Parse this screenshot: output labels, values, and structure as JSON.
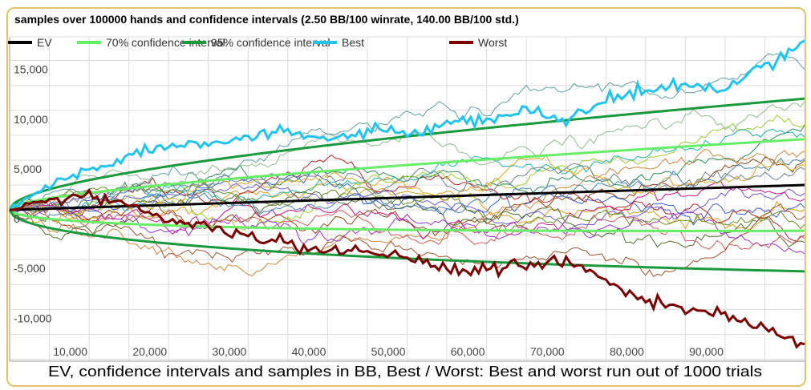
{
  "chart_data": {
    "type": "line",
    "title": "samples over 100000 hands and confidence intervals (2.50 BB/100 winrate, 140.00 BB/100 std.)",
    "caption": "EV, confidence intervals and samples in BB, Best / Worst: Best and worst run out of 1000 trials",
    "winrate_bb100": 2.5,
    "std_bb100": 140,
    "hands": 100000,
    "xlim": [
      0,
      100000
    ],
    "ylim": [
      -15200,
      16100
    ],
    "xticks": [
      10000,
      20000,
      30000,
      40000,
      50000,
      60000,
      70000,
      80000,
      90000
    ],
    "xtick_labels": [
      "10,000",
      "20,000",
      "30,000",
      "40,000",
      "50,000",
      "60,000",
      "70,000",
      "80,000",
      "90,000"
    ],
    "yticks": [
      15000,
      10000,
      5000,
      0,
      -5000,
      -10000
    ],
    "ytick_labels": [
      "15,000",
      "10,000",
      "5,000",
      "0",
      "-5,000",
      "-10,000"
    ],
    "legend": [
      {
        "name": "EV",
        "color": "#000000"
      },
      {
        "name": "70% confidence interval",
        "color": "#66ee66"
      },
      {
        "name": "95% confidence interval",
        "color": "#1a9a3c"
      },
      {
        "name": "Best",
        "color": "#22c4ee"
      },
      {
        "name": "Worst",
        "color": "#7a0000"
      }
    ],
    "z70": 1.04,
    "z95": 1.96,
    "best": {
      "x": [
        0,
        5000,
        10000,
        15000,
        20000,
        25000,
        30000,
        35000,
        40000,
        45000,
        50000,
        55000,
        60000,
        65000,
        70000,
        75000,
        80000,
        85000,
        90000,
        95000,
        100000
      ],
      "y": [
        0,
        2500,
        4000,
        5500,
        6500,
        7000,
        7200,
        7800,
        7000,
        8000,
        7500,
        8500,
        9000,
        10000,
        9000,
        11000,
        12000,
        12500,
        12000,
        14500,
        17000
      ]
    },
    "worst": {
      "x": [
        0,
        5000,
        10000,
        15000,
        20000,
        25000,
        30000,
        35000,
        40000,
        45000,
        50000,
        55000,
        60000,
        65000,
        70000,
        75000,
        80000,
        85000,
        90000,
        95000,
        100000
      ],
      "y": [
        0,
        1000,
        1500,
        500,
        -1000,
        -2000,
        -2500,
        -3500,
        -4000,
        -4500,
        -4500,
        -6000,
        -6000,
        -5500,
        -5000,
        -7000,
        -9000,
        -10000,
        -10500,
        -12000,
        -13500
      ]
    },
    "sample_count": 20,
    "sample_colors": [
      "#8b4513",
      "#d4a017",
      "#3a5fcd",
      "#2e8b57",
      "#b22222",
      "#9acd32",
      "#6a5acd",
      "#cd853f",
      "#20b2aa",
      "#c71585",
      "#556b2f",
      "#4682b4",
      "#daa520",
      "#8fbc8f",
      "#a0522d",
      "#5f9ea0",
      "#9932cc",
      "#6b8e23",
      "#cd5c5c",
      "#708090"
    ]
  }
}
